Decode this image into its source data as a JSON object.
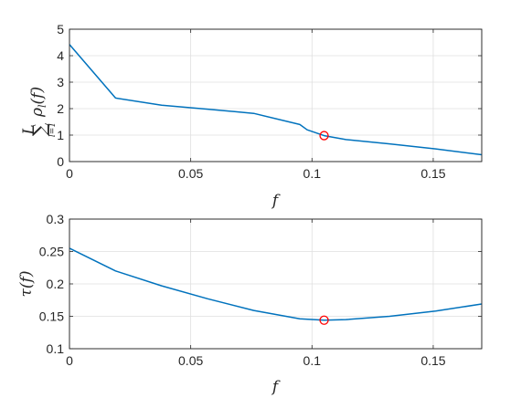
{
  "chart_data": [
    {
      "type": "line",
      "title": "",
      "xlabel": "f",
      "ylabel": "∑ ρₗ(f)",
      "ylabel_parts": {
        "sum_top": "L",
        "sum_sign": "∑",
        "sum_bottom": "l=1",
        "body": "ρ",
        "sub": "l",
        "arg": "(f)"
      },
      "xlim": [
        0,
        0.17
      ],
      "ylim": [
        0,
        5
      ],
      "xticks": [
        0,
        0.05,
        0.1,
        0.15
      ],
      "xtick_labels": [
        "0",
        "0.05",
        "0.1",
        "0.15"
      ],
      "yticks": [
        0,
        1,
        2,
        3,
        4,
        5
      ],
      "ytick_labels": [
        "0",
        "1",
        "2",
        "3",
        "4",
        "5"
      ],
      "grid": true,
      "series": [
        {
          "color": "#0072bd",
          "x": [
            0,
            0.019,
            0.038,
            0.057,
            0.076,
            0.095,
            0.098,
            0.105,
            0.114,
            0.132,
            0.151,
            0.17
          ],
          "y": [
            4.42,
            2.4,
            2.13,
            1.98,
            1.82,
            1.4,
            1.2,
            0.98,
            0.83,
            0.67,
            0.48,
            0.26
          ]
        }
      ],
      "markers": [
        {
          "x": 0.105,
          "y": 0.98,
          "color": "#ff0000",
          "shape": "circle"
        }
      ]
    },
    {
      "type": "line",
      "title": "",
      "xlabel": "f",
      "ylabel": "τ(f)",
      "xlim": [
        0,
        0.17
      ],
      "ylim": [
        0.1,
        0.3
      ],
      "xticks": [
        0,
        0.05,
        0.1,
        0.15
      ],
      "xtick_labels": [
        "0",
        "0.05",
        "0.1",
        "0.15"
      ],
      "yticks": [
        0.1,
        0.15,
        0.2,
        0.25,
        0.3
      ],
      "ytick_labels": [
        "0.1",
        "0.15",
        "0.2",
        "0.25",
        "0.3"
      ],
      "grid": true,
      "series": [
        {
          "color": "#0072bd",
          "x": [
            0,
            0.019,
            0.038,
            0.057,
            0.076,
            0.095,
            0.105,
            0.114,
            0.132,
            0.151,
            0.17
          ],
          "y": [
            0.255,
            0.22,
            0.197,
            0.177,
            0.159,
            0.146,
            0.144,
            0.145,
            0.15,
            0.158,
            0.169
          ]
        }
      ],
      "markers": [
        {
          "x": 0.105,
          "y": 0.144,
          "color": "#ff0000",
          "shape": "circle"
        }
      ]
    }
  ]
}
